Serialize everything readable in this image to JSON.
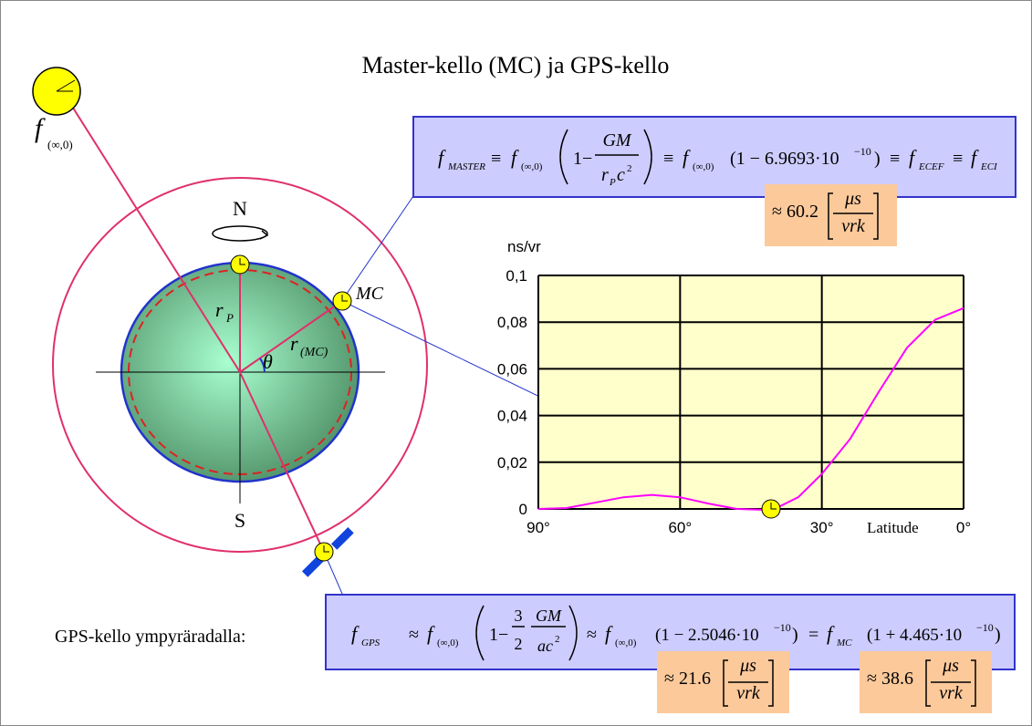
{
  "title": "Master-kello (MC) ja GPS-kello",
  "diagram": {
    "north": "N",
    "south": "S",
    "mc": "MC",
    "r_p": [
      "r",
      "P"
    ],
    "r_mc": [
      "r",
      "(MC)"
    ],
    "theta": "θ",
    "f_inf": [
      "f",
      "(∞,0)"
    ]
  },
  "formula_master": [
    "f",
    "MASTER",
    "≡",
    "f",
    "(∞,0)",
    "1−",
    "GM",
    "r",
    "P",
    "c",
    "2",
    "≡",
    "f",
    "(∞,0)",
    "(1 − 6.9693·10",
    "−10",
    ")",
    "≡",
    "f",
    "ECEF",
    "≡",
    "f",
    "ECI"
  ],
  "approx_master": [
    "≈ 60.2",
    "μs",
    "vrk"
  ],
  "gps_label": "GPS-kello ympyräradalla:",
  "formula_gps": [
    "f",
    "GPS",
    "≈",
    "f",
    "(∞,0)",
    "1−",
    "3",
    "2",
    "GM",
    "ac",
    "2",
    "≈",
    "f",
    "(∞,0)",
    "(1 − 2.5046·10",
    "−10",
    ")",
    "=",
    "f",
    "MC",
    "(1 + 4.465·10",
    "−10",
    ")"
  ],
  "approx_gps": [
    "≈ 21.6",
    "μs",
    "vrk"
  ],
  "approx_mc": [
    "≈ 38.6",
    "μs",
    "vrk"
  ],
  "chart_data": {
    "type": "line",
    "y_label": "ns/vr",
    "x_label": "Latitude",
    "color": "#ff00ff",
    "x": [
      90,
      84,
      72,
      66,
      60,
      54,
      48,
      42,
      39,
      35,
      30,
      24,
      18,
      12,
      6,
      0
    ],
    "values": [
      0,
      0.0004,
      0.005,
      0.006,
      0.005,
      0.0023,
      0,
      -0.0004,
      0.001,
      0.005,
      0.015,
      0.03,
      0.05,
      0.069,
      0.081,
      0.086
    ],
    "xlim": [
      90,
      0
    ],
    "xticks": [
      {
        "value": 90,
        "label": "90°"
      },
      {
        "value": 60,
        "label": "60°"
      },
      {
        "value": 30,
        "label": "30°"
      },
      {
        "value": 0,
        "label": "0°"
      }
    ],
    "ylim": [
      0,
      0.1
    ],
    "yticks": [
      0,
      {
        "value": 0.02,
        "label": "0,02"
      },
      {
        "value": 0.04,
        "label": "0,04"
      },
      {
        "value": 0.06,
        "label": "0,06"
      },
      {
        "value": 0.08,
        "label": "0,08"
      },
      {
        "value": 0.1,
        "label": "0,1"
      }
    ],
    "grid": true
  }
}
